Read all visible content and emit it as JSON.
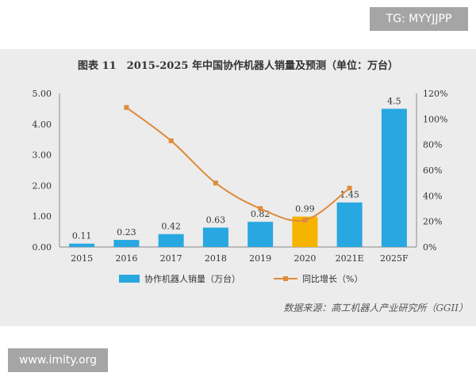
{
  "watermarks": {
    "top": "TG: MYYJJPP",
    "bottom": "www.imity.org"
  },
  "source": "数据来源：高工机器人产业研究所（GGII）",
  "colors": {
    "bar": "#29a7e1",
    "bar_highlight": "#f5b400",
    "line": "#e08a3c",
    "panel": "#ececec"
  },
  "chart_data": {
    "type": "bar",
    "title": "图表 11　2015-2025 年中国协作机器人销量及预测（单位：万台）",
    "categories": [
      "2015",
      "2016",
      "2017",
      "2018",
      "2019",
      "2020",
      "2021E",
      "2025F"
    ],
    "series": [
      {
        "name": "协作机器人销量（万台）",
        "type": "bar",
        "axis": "left",
        "values": [
          0.11,
          0.23,
          0.42,
          0.63,
          0.82,
          0.99,
          1.45,
          4.5
        ],
        "labels": [
          "0.11",
          "0.23",
          "0.42",
          "0.63",
          "0.82",
          "0.99",
          "1.45",
          "4.5"
        ],
        "highlight_index": 5
      },
      {
        "name": "同比增长（%）",
        "type": "line",
        "axis": "right",
        "values": [
          null,
          109,
          83,
          50,
          30,
          21,
          46,
          null
        ]
      }
    ],
    "y_left": {
      "range": [
        0,
        5
      ],
      "ticks": [
        "0.00",
        "1.00",
        "2.00",
        "3.00",
        "4.00",
        "5.00"
      ]
    },
    "y_right": {
      "range": [
        0,
        120
      ],
      "ticks": [
        "0%",
        "20%",
        "40%",
        "60%",
        "80%",
        "100%",
        "120%"
      ]
    },
    "legend_position": "bottom",
    "grid": false
  }
}
